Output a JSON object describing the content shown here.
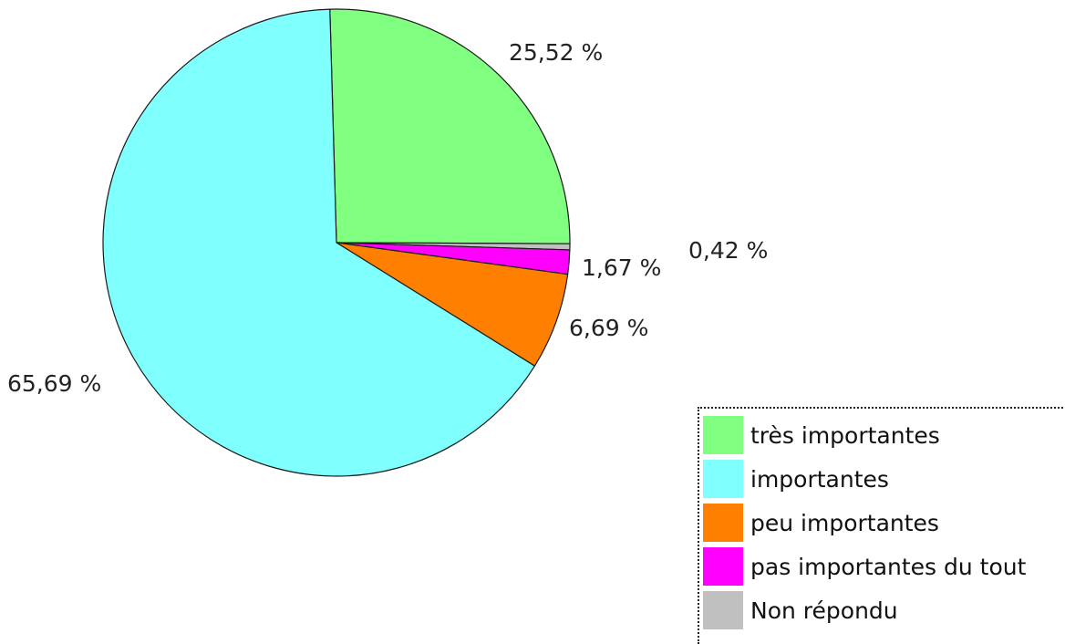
{
  "chart_data": {
    "type": "pie",
    "slices": [
      {
        "name": "très importantes",
        "value": 25.52,
        "label": "25,52 %",
        "color": "#80ff80"
      },
      {
        "name": "Non répondu",
        "value": 0.42,
        "label": "0,42 %",
        "color": "#c0c0c0"
      },
      {
        "name": "pas importantes du tout",
        "value": 1.67,
        "label": "1,67 %",
        "color": "#ff00ff"
      },
      {
        "name": "peu importantes",
        "value": 6.69,
        "label": "6,69 %",
        "color": "#ff8000"
      },
      {
        "name": "importantes",
        "value": 65.69,
        "label": "65,69 %",
        "color": "#80ffff"
      }
    ],
    "legend_position": "bottom-right"
  },
  "legend": {
    "items": [
      {
        "label": "très importantes",
        "color": "#80ff80"
      },
      {
        "label": "importantes",
        "color": "#80ffff"
      },
      {
        "label": "peu importantes",
        "color": "#ff8000"
      },
      {
        "label": "pas importantes du tout",
        "color": "#ff00ff"
      },
      {
        "label": "Non répondu",
        "color": "#c0c0c0"
      }
    ]
  }
}
